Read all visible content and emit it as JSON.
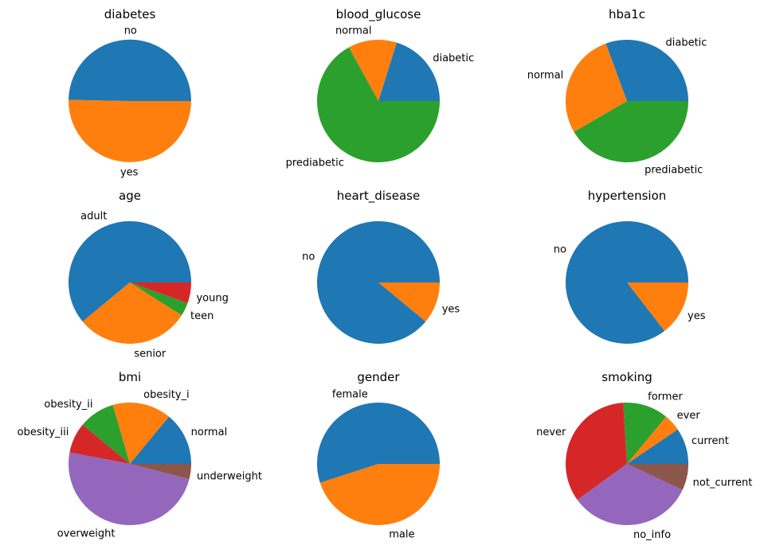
{
  "chart_data": [
    {
      "type": "pie",
      "title": "diabetes",
      "categories": [
        "no",
        "yes"
      ],
      "values": [
        49.7,
        50.3
      ]
    },
    {
      "type": "pie",
      "title": "blood_glucose",
      "categories": [
        "diabetic",
        "normal",
        "prediabetic"
      ],
      "values": [
        20.2,
        12.8,
        67.0
      ]
    },
    {
      "type": "pie",
      "title": "hba1c",
      "categories": [
        "diabetic",
        "normal",
        "prediabetic"
      ],
      "values": [
        30.6,
        27.8,
        41.6
      ]
    },
    {
      "type": "pie",
      "title": "age",
      "categories": [
        "adult",
        "senior",
        "teen",
        "young"
      ],
      "values": [
        61.0,
        30.0,
        3.5,
        5.5
      ]
    },
    {
      "type": "pie",
      "title": "heart_disease",
      "categories": [
        "no",
        "yes"
      ],
      "values": [
        89.0,
        11.0
      ]
    },
    {
      "type": "pie",
      "title": "hypertension",
      "categories": [
        "no",
        "yes"
      ],
      "values": [
        85.5,
        14.5
      ]
    },
    {
      "type": "pie",
      "title": "bmi",
      "categories": [
        "normal",
        "obesity_i",
        "obesity_ii",
        "obesity_iii",
        "overweight",
        "underweight"
      ],
      "values": [
        14.0,
        15.5,
        9.5,
        8.0,
        49.0,
        4.0
      ]
    },
    {
      "type": "pie",
      "title": "gender",
      "categories": [
        "female",
        "male"
      ],
      "values": [
        55.0,
        45.0
      ]
    },
    {
      "type": "pie",
      "title": "smoking",
      "categories": [
        "current",
        "ever",
        "former",
        "never",
        "no_info",
        "not_current"
      ],
      "values": [
        9.5,
        4.5,
        12.0,
        34.0,
        33.0,
        7.0
      ]
    }
  ],
  "colors": [
    "#1f77b4",
    "#ff7f0e",
    "#2ca02c",
    "#d62728",
    "#9467bd",
    "#8c564b"
  ]
}
